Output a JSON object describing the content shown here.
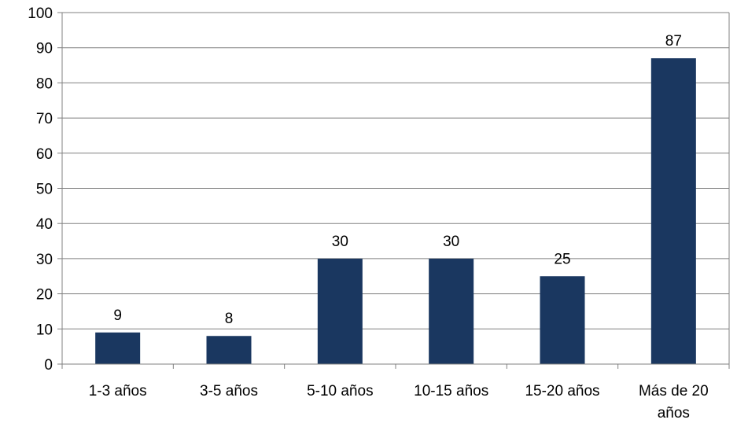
{
  "chart_data": {
    "type": "bar",
    "title": "",
    "xlabel": "",
    "ylabel": "",
    "categories": [
      [
        "1-3 años"
      ],
      [
        "3-5 años"
      ],
      [
        "5-10 años"
      ],
      [
        "10-15 años"
      ],
      [
        "15-20 años"
      ],
      [
        "Más de 20",
        "años"
      ]
    ],
    "values": [
      9,
      8,
      30,
      30,
      25,
      87
    ],
    "ylim": [
      0,
      100
    ],
    "yticks": [
      0,
      10,
      20,
      30,
      40,
      50,
      60,
      70,
      80,
      90,
      100
    ],
    "grid": true,
    "legend": "none",
    "bar_color": "#1a3760",
    "grid_color": "#808080"
  }
}
